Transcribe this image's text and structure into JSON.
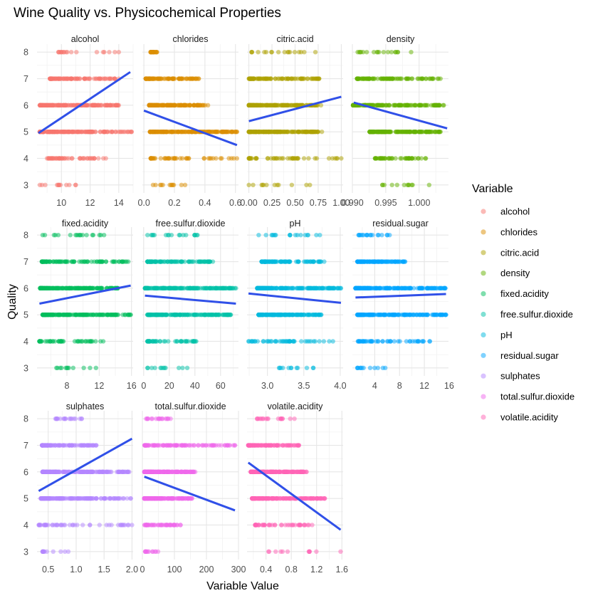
{
  "chart_data": {
    "type": "scatter",
    "title": "Wine Quality vs. Physicochemical Properties",
    "xlabel": "Variable Value",
    "ylabel": "Quality",
    "y_ticks": [
      3,
      4,
      5,
      6,
      7,
      8
    ],
    "ylim": [
      2.7,
      8.3
    ],
    "grid": true,
    "legend": {
      "title": "Variable",
      "position": "right"
    },
    "trend_color": "#3050E8",
    "facets": [
      {
        "name": "alcohol",
        "color": "#F8766D",
        "xlim": [
          8.3,
          15.0
        ],
        "ticks": [
          10,
          12,
          14
        ],
        "tick_labels": [
          "10",
          "12",
          "14"
        ],
        "ranges": {
          "3": [
            8.5,
            11.0
          ],
          "4": [
            9.0,
            13.1
          ],
          "5": [
            8.5,
            14.9
          ],
          "6": [
            8.5,
            14.0
          ],
          "7": [
            9.2,
            14.0
          ],
          "8": [
            9.8,
            14.0
          ]
        },
        "trend": [
          [
            8.4,
            4.95
          ],
          [
            14.8,
            7.25
          ]
        ]
      },
      {
        "name": "chlorides",
        "color": "#DB8E00",
        "xlim": [
          -0.01,
          0.62
        ],
        "ticks": [
          0.0,
          0.2,
          0.4,
          0.6
        ],
        "tick_labels": [
          "0.0",
          "0.2",
          "0.4",
          "0.6"
        ],
        "ranges": {
          "3": [
            0.06,
            0.27
          ],
          "4": [
            0.045,
            0.61
          ],
          "5": [
            0.04,
            0.61
          ],
          "6": [
            0.035,
            0.42
          ],
          "7": [
            0.012,
            0.36
          ],
          "8": [
            0.044,
            0.086
          ]
        },
        "trend": [
          [
            0.0,
            5.8
          ],
          [
            0.61,
            4.5
          ]
        ]
      },
      {
        "name": "citric.acid",
        "color": "#AEA200",
        "xlim": [
          -0.02,
          1.02
        ],
        "ticks": [
          0.0,
          0.25,
          0.5,
          0.75,
          1.0
        ],
        "tick_labels": [
          "0.00",
          "0.25",
          "0.50",
          "0.75",
          "1.00"
        ],
        "ranges": {
          "3": [
            0.0,
            0.66
          ],
          "4": [
            0.0,
            1.0
          ],
          "5": [
            0.0,
            0.79
          ],
          "6": [
            0.0,
            0.78
          ],
          "7": [
            0.0,
            0.76
          ],
          "8": [
            0.03,
            0.72
          ]
        },
        "trend": [
          [
            0.0,
            5.4
          ],
          [
            1.0,
            6.32
          ]
        ]
      },
      {
        "name": "density",
        "color": "#64B200",
        "xlim": [
          0.99,
          1.0044
        ],
        "ticks": [
          0.99,
          0.995,
          1.0
        ],
        "tick_labels": [
          "0.990",
          "0.995",
          "1.000"
        ],
        "ranges": {
          "3": [
            0.9945,
            1.0015
          ],
          "4": [
            0.9934,
            1.001
          ],
          "5": [
            0.9926,
            1.0032
          ],
          "6": [
            0.9901,
            1.0037
          ],
          "7": [
            0.9907,
            1.0032
          ],
          "8": [
            0.9908,
            0.9988
          ]
        },
        "trend": [
          [
            0.9902,
            6.1
          ],
          [
            1.0042,
            5.13
          ]
        ]
      },
      {
        "name": "fixed.acidity",
        "color": "#00BD5C",
        "xlim": [
          4.3,
          16.2
        ],
        "ticks": [
          8,
          12,
          16
        ],
        "tick_labels": [
          "8",
          "12",
          "16"
        ],
        "ranges": {
          "3": [
            6.7,
            11.6
          ],
          "4": [
            4.6,
            12.5
          ],
          "5": [
            5.0,
            15.9
          ],
          "6": [
            4.7,
            14.3
          ],
          "7": [
            4.9,
            15.6
          ],
          "8": [
            5.0,
            12.6
          ]
        },
        "trend": [
          [
            4.6,
            5.42
          ],
          [
            15.9,
            6.1
          ]
        ]
      },
      {
        "name": "free.sulfur.dioxide",
        "color": "#00C1A7",
        "xlim": [
          -1,
          74
        ],
        "ticks": [
          0,
          20,
          40,
          60
        ],
        "tick_labels": [
          "0",
          "20",
          "40",
          "60"
        ],
        "ranges": {
          "3": [
            3,
            34
          ],
          "4": [
            3,
            41
          ],
          "5": [
            3,
            68
          ],
          "6": [
            1,
            72
          ],
          "7": [
            3,
            54
          ],
          "8": [
            3,
            42
          ]
        },
        "trend": [
          [
            1,
            5.72
          ],
          [
            72,
            5.42
          ]
        ]
      },
      {
        "name": "pH",
        "color": "#00BADE",
        "xlim": [
          2.72,
          4.04
        ],
        "ticks": [
          3.0,
          3.5,
          4.0
        ],
        "tick_labels": [
          "3.0",
          "3.5",
          "4.0"
        ],
        "ranges": {
          "3": [
            3.16,
            3.63
          ],
          "4": [
            2.74,
            3.9
          ],
          "5": [
            2.88,
            3.74
          ],
          "6": [
            2.86,
            4.01
          ],
          "7": [
            2.92,
            3.78
          ],
          "8": [
            2.88,
            3.72
          ]
        },
        "trend": [
          [
            2.74,
            5.8
          ],
          [
            4.01,
            5.45
          ]
        ]
      },
      {
        "name": "residual.sugar",
        "color": "#00A6FF",
        "xlim": [
          0.4,
          15.9
        ],
        "ticks": [
          4,
          8,
          12,
          16
        ],
        "tick_labels": [
          "4",
          "8",
          "12",
          "16"
        ],
        "ranges": {
          "3": [
            1.2,
            5.7
          ],
          "4": [
            1.3,
            12.9
          ],
          "5": [
            1.2,
            15.5
          ],
          "6": [
            0.9,
            15.4
          ],
          "7": [
            1.2,
            8.9
          ],
          "8": [
            1.4,
            6.4
          ]
        },
        "trend": [
          [
            0.9,
            5.65
          ],
          [
            15.5,
            5.78
          ]
        ]
      },
      {
        "name": "sulphates",
        "color": "#B385FF",
        "xlim": [
          0.3,
          2.02
        ],
        "ticks": [
          0.5,
          1.0,
          1.5,
          2.0
        ],
        "tick_labels": [
          "0.5",
          "1.0",
          "1.5",
          "2.0"
        ],
        "ranges": {
          "3": [
            0.4,
            0.86
          ],
          "4": [
            0.33,
            2.0
          ],
          "5": [
            0.37,
            1.98
          ],
          "6": [
            0.4,
            1.95
          ],
          "7": [
            0.39,
            1.36
          ],
          "8": [
            0.63,
            1.1
          ]
        },
        "trend": [
          [
            0.33,
            5.28
          ],
          [
            2.0,
            7.25
          ]
        ]
      },
      {
        "name": "total.sulfur.dioxide",
        "color": "#EF67EB",
        "xlim": [
          0,
          300
        ],
        "ticks": [
          0,
          100,
          200,
          300
        ],
        "tick_labels": [
          "0",
          "100",
          "200",
          "300"
        ],
        "ranges": {
          "3": [
            9,
            49
          ],
          "4": [
            7,
            119
          ],
          "5": [
            6,
            155
          ],
          "6": [
            6,
            165
          ],
          "7": [
            7,
            289
          ],
          "8": [
            12,
            88
          ]
        },
        "trend": [
          [
            6,
            5.82
          ],
          [
            289,
            4.55
          ]
        ]
      },
      {
        "name": "volatile.acidity",
        "color": "#FF63B6",
        "xlim": [
          0.1,
          1.62
        ],
        "ticks": [
          0.4,
          0.8,
          1.2,
          1.6
        ],
        "tick_labels": [
          "0.4",
          "0.8",
          "1.2",
          "1.6"
        ],
        "ranges": {
          "3": [
            0.44,
            1.58
          ],
          "4": [
            0.23,
            1.13
          ],
          "5": [
            0.18,
            1.33
          ],
          "6": [
            0.16,
            1.04
          ],
          "7": [
            0.12,
            0.92
          ],
          "8": [
            0.26,
            0.85
          ]
        },
        "trend": [
          [
            0.12,
            6.35
          ],
          [
            1.58,
            3.82
          ]
        ]
      }
    ]
  }
}
